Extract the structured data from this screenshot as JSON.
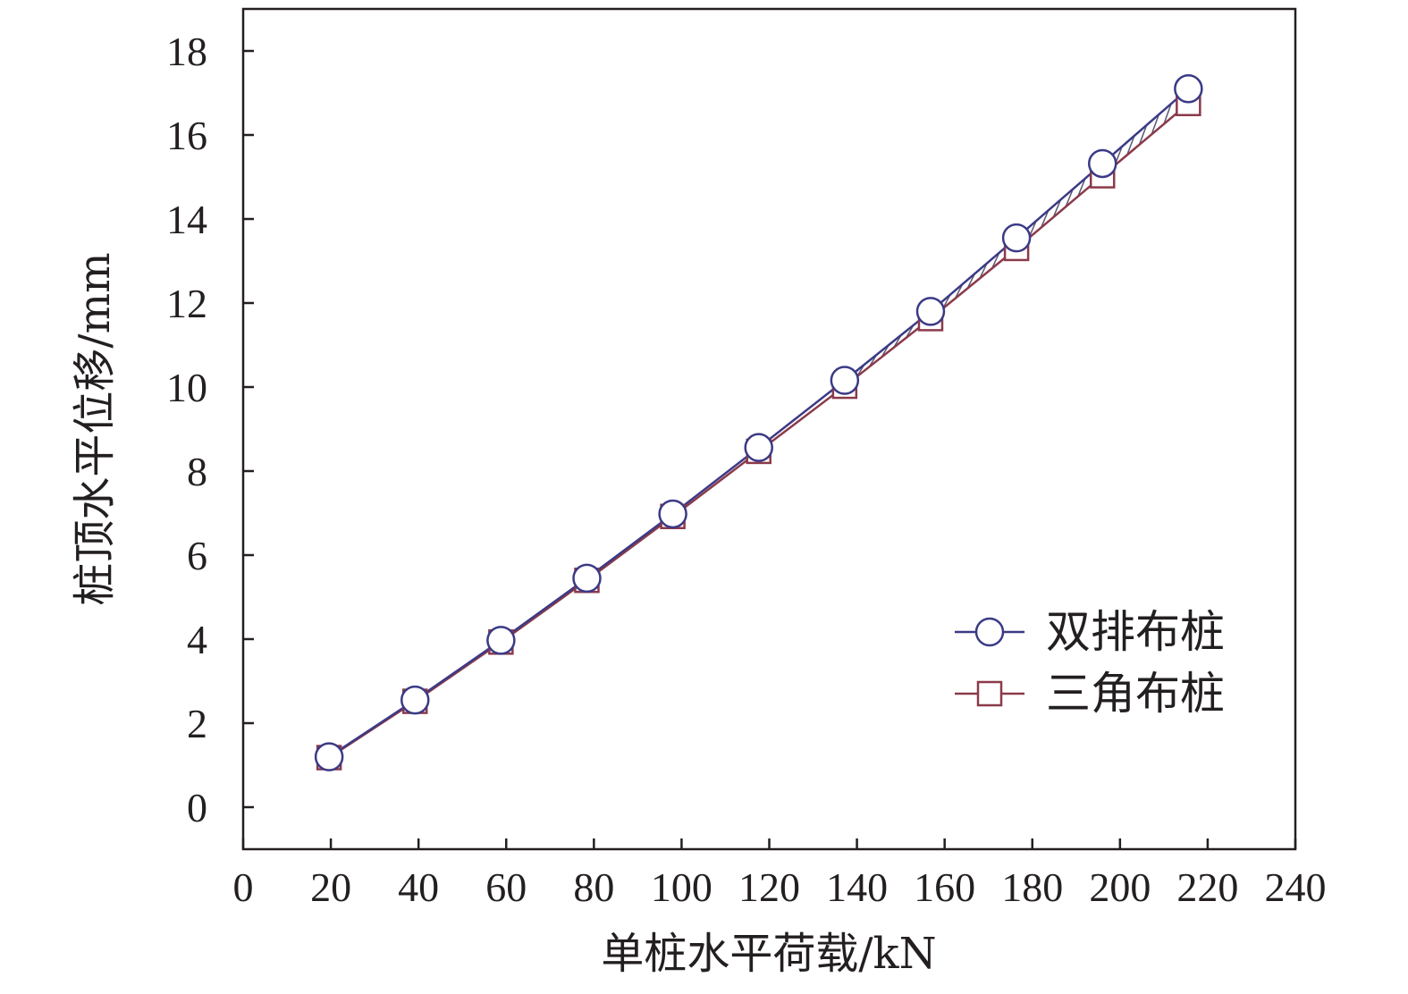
{
  "chart_data": {
    "type": "line",
    "xlabel": "单桩水平荷载/kN",
    "ylabel": "桩顶水平位移/mm",
    "xlim": [
      0,
      240
    ],
    "ylim": [
      -1,
      19
    ],
    "x_ticks": [
      "0",
      "20",
      "40",
      "60",
      "80",
      "100",
      "120",
      "140",
      "160",
      "180",
      "200",
      "220",
      "240"
    ],
    "y_ticks": [
      "0",
      "2",
      "4",
      "6",
      "8",
      "10",
      "12",
      "14",
      "16",
      "18"
    ],
    "grid": false,
    "legend_position": "bottom-right",
    "series": [
      {
        "name": "双排布桩",
        "marker": "circle",
        "color": "#3b3a86",
        "x": [
          19.6,
          39.2,
          58.8,
          78.4,
          98,
          117.6,
          137.2,
          156.8,
          176.4,
          196,
          215.6
        ],
        "y": [
          1.2,
          2.55,
          3.97,
          5.45,
          6.98,
          8.56,
          10.16,
          11.8,
          13.55,
          15.32,
          17.1
        ]
      },
      {
        "name": "三角布桩",
        "marker": "square",
        "color": "#8b3a4a",
        "x": [
          19.6,
          39.2,
          58.8,
          78.4,
          98,
          117.6,
          137.2,
          156.8,
          176.4,
          196,
          215.6
        ],
        "y": [
          1.18,
          2.52,
          3.93,
          5.4,
          6.92,
          8.47,
          10.02,
          11.63,
          13.3,
          15.03,
          16.75
        ]
      }
    ]
  }
}
